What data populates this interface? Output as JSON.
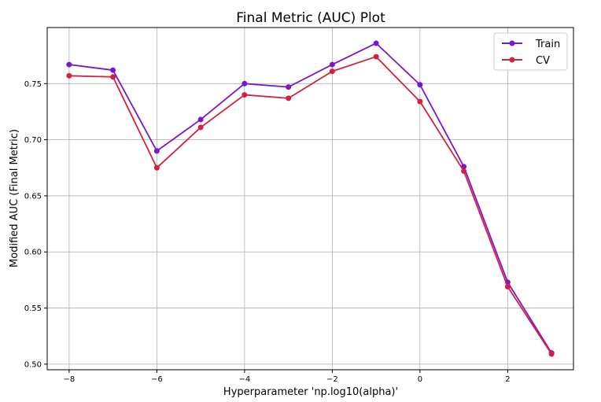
{
  "chart_data": {
    "type": "line",
    "title": "Final Metric (AUC) Plot",
    "xlabel": "Hyperparameter 'np.log10(alpha)'",
    "ylabel": "Modified AUC (Final Metric)",
    "xlim": [
      -8.5,
      3.5
    ],
    "ylim": [
      0.495,
      0.8
    ],
    "xticks": [
      -8,
      -6,
      -4,
      -2,
      0,
      2
    ],
    "xtick_labels": [
      "−8",
      "−6",
      "−4",
      "−2",
      "0",
      "2"
    ],
    "yticks": [
      0.5,
      0.55,
      0.6,
      0.65,
      0.7,
      0.75
    ],
    "ytick_labels": [
      "0.50",
      "0.55",
      "0.60",
      "0.65",
      "0.70",
      "0.75"
    ],
    "grid": true,
    "legend_position": "top-right",
    "x": [
      -8,
      -7,
      -6,
      -5,
      -4,
      -3,
      -2,
      -1,
      0,
      1,
      2,
      3
    ],
    "series": [
      {
        "name": "Train",
        "color": "#7b16cf",
        "values": [
          0.767,
          0.762,
          0.69,
          0.718,
          0.75,
          0.747,
          0.767,
          0.786,
          0.749,
          0.676,
          0.573,
          0.51
        ]
      },
      {
        "name": "CV",
        "color": "#d4213d",
        "values": [
          0.757,
          0.756,
          0.675,
          0.711,
          0.74,
          0.737,
          0.761,
          0.774,
          0.734,
          0.672,
          0.569,
          0.509
        ]
      }
    ]
  }
}
